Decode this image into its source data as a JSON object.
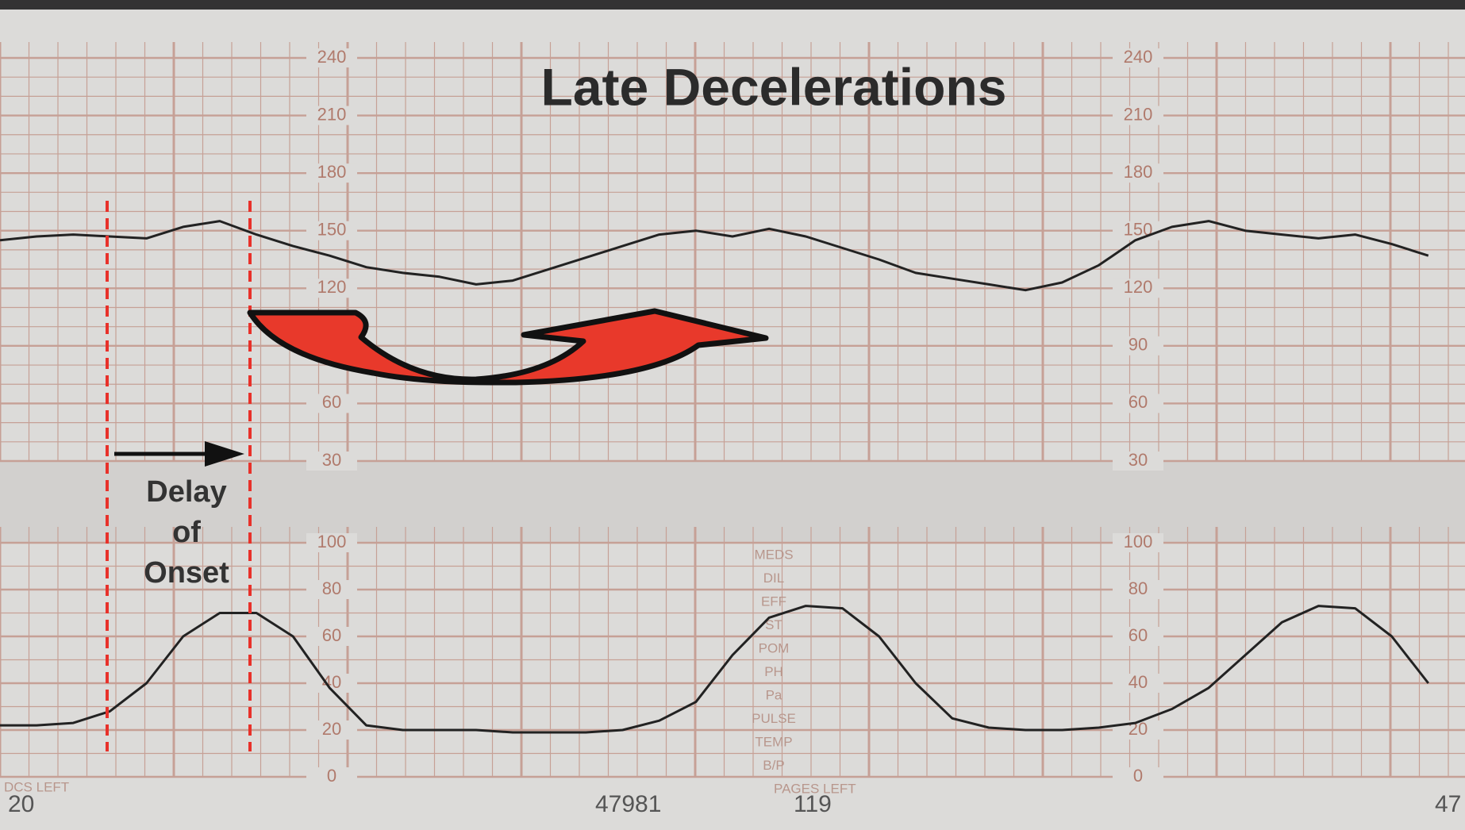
{
  "title": "Late Decelerations",
  "annotations": [
    "Delay",
    "of",
    "Onset"
  ],
  "footer": [
    "DCS LEFT",
    "20",
    "47981",
    "PAGES LEFT",
    "119",
    "47"
  ],
  "side_labels": [
    "MEDS",
    "DIL",
    "EFF",
    "ST",
    "POM",
    "PH",
    "Pa",
    "PULSE",
    "TEMP",
    "B/P"
  ],
  "chart_data": [
    {
      "type": "line",
      "ylim": [
        30,
        240
      ],
      "yticks": [
        30,
        60,
        90,
        120,
        150,
        180,
        210,
        240
      ],
      "grid": true,
      "color": "#222222",
      "values": [
        145,
        147,
        148,
        147,
        146,
        152,
        155,
        148,
        142,
        137,
        131,
        128,
        126,
        122,
        124,
        130,
        136,
        142,
        148,
        150,
        147,
        151,
        147,
        141,
        135,
        128,
        125,
        122,
        119,
        123,
        132,
        145,
        152,
        155,
        150,
        148,
        146,
        148,
        143,
        137
      ]
    },
    {
      "type": "line",
      "ylim": [
        0,
        100
      ],
      "yticks": [
        0,
        20,
        40,
        60,
        80,
        100
      ],
      "grid": true,
      "color": "#222222",
      "values": [
        22,
        22,
        23,
        28,
        40,
        60,
        70,
        70,
        60,
        38,
        22,
        20,
        20,
        20,
        19,
        19,
        19,
        20,
        24,
        32,
        52,
        68,
        73,
        72,
        60,
        40,
        25,
        21,
        20,
        20,
        21,
        23,
        29,
        38,
        52,
        66,
        73,
        72,
        60,
        40
      ]
    }
  ]
}
